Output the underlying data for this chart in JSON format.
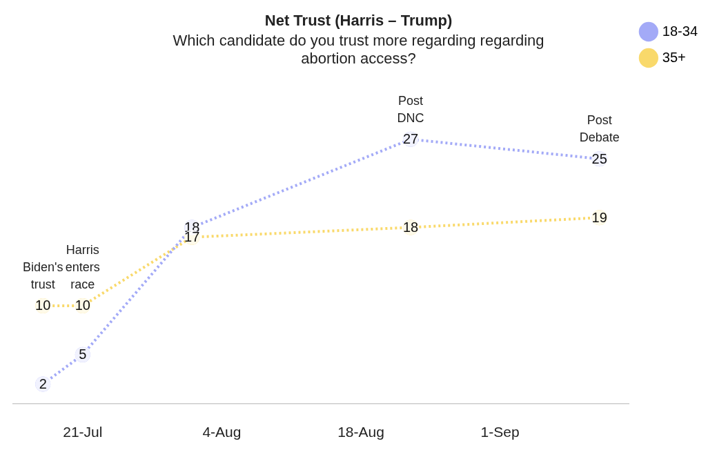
{
  "chart_data": {
    "type": "line",
    "title": "Net Trust (Harris – Trump)",
    "subtitle": "Which candidate do you trust more regarding regarding abortion access?",
    "x": [
      "--07-17",
      "--07-21",
      "--08-01",
      "--08-23",
      "--09-11"
    ],
    "series": [
      {
        "name": "18-34",
        "color": "#a3aaf7",
        "values": [
          2,
          5,
          18,
          27,
          25
        ]
      },
      {
        "name": "35+",
        "color": "#f9d96b",
        "values": [
          10,
          10,
          17,
          18,
          19
        ]
      }
    ],
    "xlim": [
      "--07-14",
      "--09-14"
    ],
    "xticks": [
      {
        "value": "--07-21",
        "label": "21-Jul"
      },
      {
        "value": "--08-04",
        "label": "4-Aug"
      },
      {
        "value": "--08-18",
        "label": "18-Aug"
      },
      {
        "value": "--09-01",
        "label": "1-Sep"
      }
    ],
    "annotations": [
      {
        "text": "Biden's trust",
        "x": "--07-17",
        "y": 10
      },
      {
        "text": "Harris enters race",
        "x": "--07-21",
        "y": 10
      },
      {
        "text": "Post DNC",
        "x": "--08-23",
        "y": 27
      },
      {
        "text": "Post Debate",
        "x": "--09-11",
        "y": 25
      }
    ],
    "data_labels": true,
    "legend": "top right",
    "grid": false,
    "marker": "circle",
    "line_style": "dotted"
  }
}
